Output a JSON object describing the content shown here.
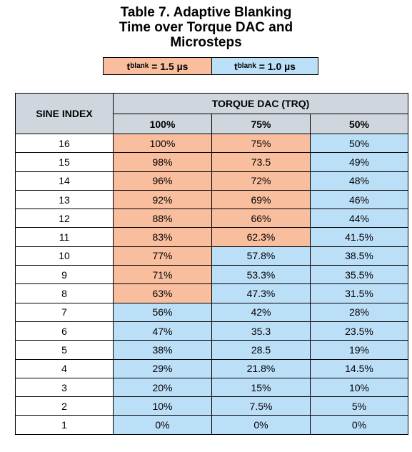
{
  "title": {
    "line1": "Table 7. Adaptive Blanking",
    "line2": "Time over Torque DAC and",
    "line3": "Microsteps"
  },
  "legend": {
    "items": [
      {
        "symbol": "t",
        "subscript": "blank",
        "value": " = 1.5 µs",
        "color": "#f9be9e"
      },
      {
        "symbol": "t",
        "subscript": "blank",
        "value": " = 1.0 µs",
        "color": "#bcdff8"
      }
    ]
  },
  "table": {
    "index_header": "SINE INDEX",
    "group_header": "TORQUE DAC (TRQ)",
    "columns": [
      "100%",
      "75%",
      "50%"
    ],
    "rows": [
      {
        "index": "16",
        "cells": [
          {
            "v": "100%",
            "c": "o"
          },
          {
            "v": "75%",
            "c": "o"
          },
          {
            "v": "50%",
            "c": "b"
          }
        ]
      },
      {
        "index": "15",
        "cells": [
          {
            "v": "98%",
            "c": "o"
          },
          {
            "v": "73.5",
            "c": "o"
          },
          {
            "v": "49%",
            "c": "b"
          }
        ]
      },
      {
        "index": "14",
        "cells": [
          {
            "v": "96%",
            "c": "o"
          },
          {
            "v": "72%",
            "c": "o"
          },
          {
            "v": "48%",
            "c": "b"
          }
        ]
      },
      {
        "index": "13",
        "cells": [
          {
            "v": "92%",
            "c": "o"
          },
          {
            "v": "69%",
            "c": "o"
          },
          {
            "v": "46%",
            "c": "b"
          }
        ]
      },
      {
        "index": "12",
        "cells": [
          {
            "v": "88%",
            "c": "o"
          },
          {
            "v": "66%",
            "c": "o"
          },
          {
            "v": "44%",
            "c": "b"
          }
        ]
      },
      {
        "index": "11",
        "cells": [
          {
            "v": "83%",
            "c": "o"
          },
          {
            "v": "62.3%",
            "c": "o"
          },
          {
            "v": "41.5%",
            "c": "b"
          }
        ]
      },
      {
        "index": "10",
        "cells": [
          {
            "v": "77%",
            "c": "o"
          },
          {
            "v": "57.8%",
            "c": "b"
          },
          {
            "v": "38.5%",
            "c": "b"
          }
        ]
      },
      {
        "index": "9",
        "cells": [
          {
            "v": "71%",
            "c": "o"
          },
          {
            "v": "53.3%",
            "c": "b"
          },
          {
            "v": "35.5%",
            "c": "b"
          }
        ]
      },
      {
        "index": "8",
        "cells": [
          {
            "v": "63%",
            "c": "o"
          },
          {
            "v": "47.3%",
            "c": "b"
          },
          {
            "v": "31.5%",
            "c": "b"
          }
        ]
      },
      {
        "index": "7",
        "cells": [
          {
            "v": "56%",
            "c": "b"
          },
          {
            "v": "42%",
            "c": "b"
          },
          {
            "v": "28%",
            "c": "b"
          }
        ]
      },
      {
        "index": "6",
        "cells": [
          {
            "v": "47%",
            "c": "b"
          },
          {
            "v": "35.3",
            "c": "b"
          },
          {
            "v": "23.5%",
            "c": "b"
          }
        ]
      },
      {
        "index": "5",
        "cells": [
          {
            "v": "38%",
            "c": "b"
          },
          {
            "v": "28.5",
            "c": "b"
          },
          {
            "v": "19%",
            "c": "b"
          }
        ]
      },
      {
        "index": "4",
        "cells": [
          {
            "v": "29%",
            "c": "b"
          },
          {
            "v": "21.8%",
            "c": "b"
          },
          {
            "v": "14.5%",
            "c": "b"
          }
        ]
      },
      {
        "index": "3",
        "cells": [
          {
            "v": "20%",
            "c": "b"
          },
          {
            "v": "15%",
            "c": "b"
          },
          {
            "v": "10%",
            "c": "b"
          }
        ]
      },
      {
        "index": "2",
        "cells": [
          {
            "v": "10%",
            "c": "b"
          },
          {
            "v": "7.5%",
            "c": "b"
          },
          {
            "v": "5%",
            "c": "b"
          }
        ]
      },
      {
        "index": "1",
        "cells": [
          {
            "v": "0%",
            "c": "b"
          },
          {
            "v": "0%",
            "c": "b"
          },
          {
            "v": "0%",
            "c": "b"
          }
        ]
      }
    ]
  }
}
